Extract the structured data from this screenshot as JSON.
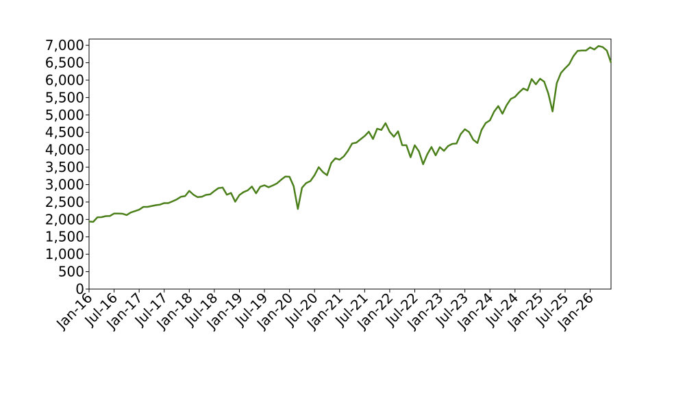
{
  "chart_data": {
    "type": "line",
    "x": [
      "2016-01",
      "2016-02",
      "2016-03",
      "2016-04",
      "2016-05",
      "2016-06",
      "2016-07",
      "2016-08",
      "2016-09",
      "2016-10",
      "2016-11",
      "2016-12",
      "2017-01",
      "2017-02",
      "2017-03",
      "2017-04",
      "2017-05",
      "2017-06",
      "2017-07",
      "2017-08",
      "2017-09",
      "2017-10",
      "2017-11",
      "2017-12",
      "2018-01",
      "2018-02",
      "2018-03",
      "2018-04",
      "2018-05",
      "2018-06",
      "2018-07",
      "2018-08",
      "2018-09",
      "2018-10",
      "2018-11",
      "2018-12",
      "2019-01",
      "2019-02",
      "2019-03",
      "2019-04",
      "2019-05",
      "2019-06",
      "2019-07",
      "2019-08",
      "2019-09",
      "2019-10",
      "2019-11",
      "2019-12",
      "2020-01",
      "2020-02",
      "2020-03",
      "2020-04",
      "2020-05",
      "2020-06",
      "2020-07",
      "2020-08",
      "2020-09",
      "2020-10",
      "2020-11",
      "2020-12",
      "2021-01",
      "2021-02",
      "2021-03",
      "2021-04",
      "2021-05",
      "2021-06",
      "2021-07",
      "2021-08",
      "2021-09",
      "2021-10",
      "2021-11",
      "2021-12",
      "2022-01",
      "2022-02",
      "2022-03",
      "2022-04",
      "2022-05",
      "2022-06",
      "2022-07",
      "2022-08",
      "2022-09",
      "2022-10",
      "2022-11",
      "2022-12",
      "2023-01",
      "2023-02",
      "2023-03",
      "2023-04",
      "2023-05",
      "2023-06",
      "2023-07",
      "2023-08",
      "2023-09",
      "2023-10",
      "2023-11",
      "2023-12",
      "2024-01",
      "2024-02",
      "2024-03",
      "2024-04",
      "2024-05",
      "2024-06",
      "2024-07",
      "2024-08",
      "2024-09",
      "2024-10",
      "2024-11",
      "2024-12",
      "2025-01",
      "2025-02",
      "2025-03",
      "2025-04",
      "2025-05",
      "2025-06",
      "2025-07",
      "2025-08",
      "2025-09",
      "2025-10",
      "2025-11",
      "2025-12",
      "2026-01",
      "2026-02",
      "2026-03",
      "2026-04",
      "2026-05",
      "2026-06"
    ],
    "series": [
      {
        "color": "#4a7f1a",
        "values": [
          1940,
          1930,
          2060,
          2065,
          2095,
          2100,
          2170,
          2170,
          2165,
          2125,
          2200,
          2240,
          2280,
          2360,
          2360,
          2385,
          2410,
          2425,
          2470,
          2470,
          2520,
          2575,
          2650,
          2670,
          2820,
          2710,
          2640,
          2650,
          2705,
          2720,
          2815,
          2900,
          2915,
          2710,
          2760,
          2510,
          2700,
          2785,
          2835,
          2945,
          2750,
          2940,
          2980,
          2925,
          2975,
          3035,
          3140,
          3230,
          3225,
          2955,
          2300,
          2910,
          3045,
          3100,
          3270,
          3500,
          3360,
          3270,
          3620,
          3755,
          3715,
          3810,
          3970,
          4180,
          4205,
          4300,
          4395,
          4520,
          4310,
          4605,
          4570,
          4765,
          4515,
          4375,
          4530,
          4130,
          4130,
          3785,
          4130,
          3955,
          3585,
          3870,
          4080,
          3840,
          4075,
          3970,
          4110,
          4170,
          4180,
          4450,
          4590,
          4510,
          4290,
          4195,
          4570,
          4770,
          4845,
          5095,
          5255,
          5035,
          5280,
          5460,
          5520,
          5650,
          5760,
          5705,
          6030,
          5880,
          6040,
          5955,
          5610,
          5100,
          5910,
          6205,
          6340,
          6460,
          6690,
          6840,
          6850,
          6850,
          6940,
          6880,
          6980,
          6950,
          6850,
          6500
        ]
      }
    ],
    "xlim": [
      "2016-01",
      "2026-06"
    ],
    "xticks": [
      {
        "value": "2016-01",
        "label": "Jan-16"
      },
      {
        "value": "2016-07",
        "label": "Jul-16"
      },
      {
        "value": "2017-01",
        "label": "Jan-17"
      },
      {
        "value": "2017-07",
        "label": "Jul-17"
      },
      {
        "value": "2018-01",
        "label": "Jan-18"
      },
      {
        "value": "2018-07",
        "label": "Jul-18"
      },
      {
        "value": "2019-01",
        "label": "Jan-19"
      },
      {
        "value": "2019-07",
        "label": "Jul-19"
      },
      {
        "value": "2020-01",
        "label": "Jan-20"
      },
      {
        "value": "2020-07",
        "label": "Jul-20"
      },
      {
        "value": "2021-01",
        "label": "Jan-21"
      },
      {
        "value": "2021-07",
        "label": "Jul-21"
      },
      {
        "value": "2022-01",
        "label": "Jan-22"
      },
      {
        "value": "2022-07",
        "label": "Jul-22"
      },
      {
        "value": "2023-01",
        "label": "Jan-23"
      },
      {
        "value": "2023-07",
        "label": "Jul-23"
      },
      {
        "value": "2024-01",
        "label": "Jan-24"
      },
      {
        "value": "2024-07",
        "label": "Jul-24"
      },
      {
        "value": "2025-01",
        "label": "Jan-25"
      },
      {
        "value": "2025-07",
        "label": "Jul-25"
      },
      {
        "value": "2026-01",
        "label": "Jan-26"
      }
    ],
    "ylim": [
      0,
      7180
    ],
    "yticks": [
      0,
      500,
      {
        "value": 1000,
        "label": "1,000"
      },
      {
        "value": 1500,
        "label": "1,500"
      },
      {
        "value": 2000,
        "label": "2,000"
      },
      {
        "value": 2500,
        "label": "2,500"
      },
      {
        "value": 3000,
        "label": "3,000"
      },
      {
        "value": 3500,
        "label": "3,500"
      },
      {
        "value": 4000,
        "label": "4,000"
      },
      {
        "value": 4500,
        "label": "4,500"
      },
      {
        "value": 5000,
        "label": "5,000"
      },
      {
        "value": 5500,
        "label": "5,500"
      },
      {
        "value": 6000,
        "label": "6,000"
      },
      {
        "value": 6500,
        "label": "6,500"
      },
      {
        "value": 7000,
        "label": "7,000"
      }
    ],
    "grid": false
  }
}
